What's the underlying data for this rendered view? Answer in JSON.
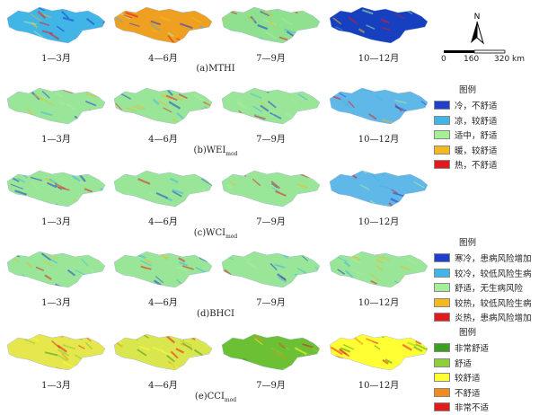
{
  "months": [
    "1—3月",
    "4—6月",
    "7—9月",
    "10—12月"
  ],
  "rows": [
    {
      "prefix": "(a)",
      "index": "MTHI",
      "sub": "",
      "palette": "a",
      "dominant": [
        "#41b6e6",
        "#f0a020",
        "#8fe08f",
        "#1740c0"
      ]
    },
    {
      "prefix": "(b)",
      "index": "WEI",
      "sub": "mod",
      "palette": "a",
      "dominant": [
        "#99e699",
        "#99e699",
        "#99e699",
        "#5fb8e8"
      ]
    },
    {
      "prefix": "(c)",
      "index": "WCI",
      "sub": "mod",
      "palette": "a",
      "dominant": [
        "#99e699",
        "#99e699",
        "#99e699",
        "#5fb8e8"
      ]
    },
    {
      "prefix": "(d)",
      "index": "BHCI",
      "sub": "",
      "palette": "d",
      "dominant": [
        "#99e699",
        "#99e699",
        "#99e699",
        "#99e699"
      ]
    },
    {
      "prefix": "(e)",
      "index": "CCI",
      "sub": "mod",
      "palette": "e",
      "dominant": [
        "#e6e64d",
        "#d9e64d",
        "#6cc033",
        "#ffff33"
      ]
    }
  ],
  "legends": [
    {
      "title": "图例",
      "items": [
        {
          "label": "冷，不舒适",
          "color": "#1f3fcf"
        },
        {
          "label": "凉，较舒适",
          "color": "#41b6e6"
        },
        {
          "label": "适中，舒适",
          "color": "#a6ef98"
        },
        {
          "label": "暖，较舒适",
          "color": "#f5b81e"
        },
        {
          "label": "热，不舒适",
          "color": "#e31a1c"
        }
      ]
    },
    {
      "title": "图例",
      "items": [
        {
          "label": "寒冷，患病风险增加",
          "color": "#1f3fcf"
        },
        {
          "label": "较冷，较低风险生病",
          "color": "#41b6e6"
        },
        {
          "label": "舒适，无生病风险",
          "color": "#a6ef98"
        },
        {
          "label": "较热，较低风险生病",
          "color": "#f5b81e"
        },
        {
          "label": "炎热，患病风险增加",
          "color": "#e31a1c"
        }
      ]
    },
    {
      "title": "图例",
      "items": [
        {
          "label": "非常舒适",
          "color": "#3c9f1e"
        },
        {
          "label": "舒适",
          "color": "#8fcf3a"
        },
        {
          "label": "较舒适",
          "color": "#ffff33"
        },
        {
          "label": "不舒适",
          "color": "#f08c1e"
        },
        {
          "label": "非常不适",
          "color": "#e31a1c"
        }
      ]
    }
  ],
  "north_label": "N",
  "scale": {
    "ticks": [
      "0",
      "160",
      "320 km"
    ]
  }
}
